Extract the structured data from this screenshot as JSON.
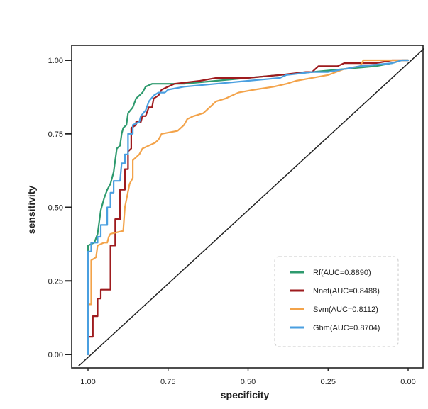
{
  "chart_data": {
    "type": "line",
    "title": "",
    "xlabel": "specificity",
    "ylabel": "sensitivity",
    "xlim": [
      1.0,
      0.0
    ],
    "ylim": [
      0.0,
      1.0
    ],
    "x_reversed": true,
    "x_ticks": [
      1.0,
      0.75,
      0.5,
      0.25,
      0.0
    ],
    "x_tick_labels": [
      "1.00",
      "0.75",
      "0.50",
      "0.25",
      "0.00"
    ],
    "y_ticks": [
      0.0,
      0.25,
      0.5,
      0.75,
      1.0
    ],
    "y_tick_labels": [
      "0.00",
      "0.25",
      "0.50",
      "0.75",
      "1.00"
    ],
    "grid": false,
    "legend_position": "bottom-right",
    "reference_line": {
      "name": "diagonal",
      "points": [
        [
          1.03,
          -0.04
        ],
        [
          -0.05,
          1.04
        ]
      ],
      "color": "#222222"
    },
    "series": [
      {
        "name": "Rf(AUC=0.8890)",
        "color": "#2e9a6e",
        "points": [
          [
            1.0,
            0.0
          ],
          [
            1.0,
            0.37
          ],
          [
            0.98,
            0.38
          ],
          [
            0.97,
            0.41
          ],
          [
            0.96,
            0.49
          ],
          [
            0.95,
            0.53
          ],
          [
            0.94,
            0.56
          ],
          [
            0.93,
            0.58
          ],
          [
            0.92,
            0.62
          ],
          [
            0.915,
            0.66
          ],
          [
            0.91,
            0.7
          ],
          [
            0.9,
            0.71
          ],
          [
            0.895,
            0.75
          ],
          [
            0.89,
            0.77
          ],
          [
            0.88,
            0.78
          ],
          [
            0.875,
            0.82
          ],
          [
            0.86,
            0.84
          ],
          [
            0.85,
            0.87
          ],
          [
            0.84,
            0.88
          ],
          [
            0.83,
            0.89
          ],
          [
            0.82,
            0.91
          ],
          [
            0.8,
            0.92
          ],
          [
            0.75,
            0.92
          ],
          [
            0.7,
            0.92
          ],
          [
            0.6,
            0.93
          ],
          [
            0.5,
            0.94
          ],
          [
            0.4,
            0.95
          ],
          [
            0.3,
            0.96
          ],
          [
            0.2,
            0.97
          ],
          [
            0.1,
            0.98
          ],
          [
            0.05,
            0.99
          ],
          [
            0.02,
            1.0
          ],
          [
            0.0,
            1.0
          ]
        ]
      },
      {
        "name": "Nnet(AUC=0.8488)",
        "color": "#9e1b1e",
        "points": [
          [
            1.0,
            0.0
          ],
          [
            1.0,
            0.06
          ],
          [
            0.985,
            0.06
          ],
          [
            0.985,
            0.13
          ],
          [
            0.97,
            0.13
          ],
          [
            0.97,
            0.19
          ],
          [
            0.96,
            0.19
          ],
          [
            0.96,
            0.22
          ],
          [
            0.93,
            0.22
          ],
          [
            0.93,
            0.37
          ],
          [
            0.915,
            0.37
          ],
          [
            0.915,
            0.46
          ],
          [
            0.9,
            0.46
          ],
          [
            0.9,
            0.56
          ],
          [
            0.885,
            0.56
          ],
          [
            0.885,
            0.63
          ],
          [
            0.875,
            0.63
          ],
          [
            0.875,
            0.69
          ],
          [
            0.865,
            0.7
          ],
          [
            0.865,
            0.77
          ],
          [
            0.85,
            0.78
          ],
          [
            0.85,
            0.79
          ],
          [
            0.835,
            0.79
          ],
          [
            0.83,
            0.81
          ],
          [
            0.82,
            0.81
          ],
          [
            0.81,
            0.84
          ],
          [
            0.8,
            0.84
          ],
          [
            0.795,
            0.87
          ],
          [
            0.78,
            0.88
          ],
          [
            0.77,
            0.9
          ],
          [
            0.75,
            0.91
          ],
          [
            0.73,
            0.92
          ],
          [
            0.65,
            0.93
          ],
          [
            0.6,
            0.94
          ],
          [
            0.5,
            0.94
          ],
          [
            0.4,
            0.95
          ],
          [
            0.32,
            0.96
          ],
          [
            0.3,
            0.96
          ],
          [
            0.28,
            0.98
          ],
          [
            0.22,
            0.98
          ],
          [
            0.2,
            0.99
          ],
          [
            0.1,
            0.99
          ],
          [
            0.05,
            1.0
          ],
          [
            0.0,
            1.0
          ]
        ]
      },
      {
        "name": "Svm(AUC=0.8112)",
        "color": "#f3a34a",
        "points": [
          [
            1.0,
            0.0
          ],
          [
            1.0,
            0.17
          ],
          [
            0.99,
            0.17
          ],
          [
            0.99,
            0.32
          ],
          [
            0.975,
            0.33
          ],
          [
            0.97,
            0.37
          ],
          [
            0.95,
            0.38
          ],
          [
            0.94,
            0.38
          ],
          [
            0.935,
            0.4
          ],
          [
            0.93,
            0.41
          ],
          [
            0.89,
            0.42
          ],
          [
            0.885,
            0.5
          ],
          [
            0.87,
            0.58
          ],
          [
            0.86,
            0.6
          ],
          [
            0.86,
            0.66
          ],
          [
            0.84,
            0.68
          ],
          [
            0.83,
            0.7
          ],
          [
            0.81,
            0.71
          ],
          [
            0.79,
            0.72
          ],
          [
            0.78,
            0.73
          ],
          [
            0.77,
            0.75
          ],
          [
            0.72,
            0.76
          ],
          [
            0.7,
            0.78
          ],
          [
            0.69,
            0.8
          ],
          [
            0.67,
            0.81
          ],
          [
            0.64,
            0.82
          ],
          [
            0.62,
            0.84
          ],
          [
            0.6,
            0.86
          ],
          [
            0.57,
            0.87
          ],
          [
            0.55,
            0.88
          ],
          [
            0.53,
            0.89
          ],
          [
            0.48,
            0.9
          ],
          [
            0.42,
            0.91
          ],
          [
            0.38,
            0.92
          ],
          [
            0.35,
            0.93
          ],
          [
            0.3,
            0.94
          ],
          [
            0.25,
            0.95
          ],
          [
            0.2,
            0.97
          ],
          [
            0.15,
            0.98
          ],
          [
            0.14,
            1.0
          ],
          [
            0.1,
            1.0
          ],
          [
            0.02,
            1.0
          ],
          [
            0.0,
            1.0
          ]
        ]
      },
      {
        "name": "Gbm(AUC=0.8704)",
        "color": "#4a9fe0",
        "points": [
          [
            1.0,
            0.0
          ],
          [
            1.0,
            0.35
          ],
          [
            0.99,
            0.35
          ],
          [
            0.99,
            0.38
          ],
          [
            0.97,
            0.38
          ],
          [
            0.97,
            0.4
          ],
          [
            0.96,
            0.4
          ],
          [
            0.96,
            0.44
          ],
          [
            0.94,
            0.44
          ],
          [
            0.94,
            0.5
          ],
          [
            0.93,
            0.5
          ],
          [
            0.93,
            0.55
          ],
          [
            0.92,
            0.55
          ],
          [
            0.92,
            0.59
          ],
          [
            0.9,
            0.59
          ],
          [
            0.895,
            0.65
          ],
          [
            0.885,
            0.65
          ],
          [
            0.885,
            0.68
          ],
          [
            0.875,
            0.68
          ],
          [
            0.875,
            0.75
          ],
          [
            0.86,
            0.75
          ],
          [
            0.86,
            0.78
          ],
          [
            0.84,
            0.79
          ],
          [
            0.835,
            0.81
          ],
          [
            0.82,
            0.83
          ],
          [
            0.81,
            0.86
          ],
          [
            0.795,
            0.88
          ],
          [
            0.78,
            0.89
          ],
          [
            0.76,
            0.89
          ],
          [
            0.75,
            0.9
          ],
          [
            0.7,
            0.91
          ],
          [
            0.6,
            0.92
          ],
          [
            0.5,
            0.93
          ],
          [
            0.4,
            0.94
          ],
          [
            0.38,
            0.95
          ],
          [
            0.3,
            0.96
          ],
          [
            0.25,
            0.96
          ],
          [
            0.2,
            0.97
          ],
          [
            0.15,
            0.98
          ],
          [
            0.05,
            0.99
          ],
          [
            0.02,
            1.0
          ],
          [
            0.0,
            1.0
          ]
        ]
      }
    ]
  }
}
